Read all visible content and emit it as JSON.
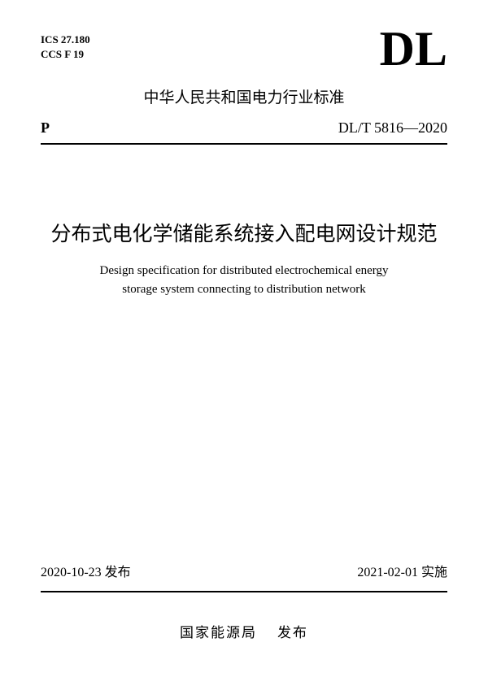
{
  "header": {
    "ics": "ICS 27.180",
    "ccs": "CCS F 19",
    "logo": "DL",
    "industry_title": "中华人民共和国电力行业标准",
    "code_left": "P",
    "standard_code": "DL/T  5816—2020"
  },
  "title": {
    "chinese": "分布式电化学储能系统接入配电网设计规范",
    "english_line1": "Design specification for distributed electrochemical energy",
    "english_line2": "storage system connecting to distribution network"
  },
  "dates": {
    "publish_date": "2020-10-23",
    "publish_label": "发布",
    "implement_date": "2021-02-01",
    "implement_label": "实施"
  },
  "publisher": {
    "org": "国家能源局",
    "action": "发布"
  },
  "colors": {
    "background": "#ffffff",
    "text": "#000000",
    "rule": "#000000"
  }
}
